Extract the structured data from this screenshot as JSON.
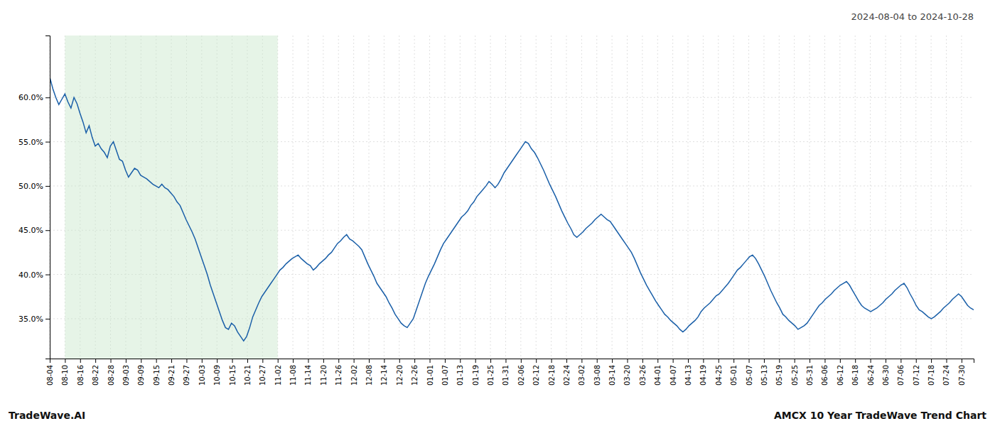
{
  "chart_data": {
    "type": "line",
    "title": "2024-08-04 to 2024-10-28",
    "annotations": [
      "TradeWave.AI",
      "AMCX 10 Year TradeWave Trend Chart"
    ],
    "color": "#1a5fa8",
    "grid": true,
    "shaded_span": {
      "x": [
        5.016393,
        75.245902
      ],
      "color": "#c8e6c9"
    },
    "xlim": [
      0,
      305
    ],
    "xticks": [
      {
        "value": 0,
        "label": "08-04"
      },
      {
        "value": 5.016393,
        "label": "08-10"
      },
      {
        "value": 10.032787,
        "label": "08-16"
      },
      {
        "value": 15.04918,
        "label": "08-22"
      },
      {
        "value": 20.065574,
        "label": "08-28"
      },
      {
        "value": 25.081967,
        "label": "09-03"
      },
      {
        "value": 30.098361,
        "label": "09-09"
      },
      {
        "value": 35.114754,
        "label": "09-15"
      },
      {
        "value": 40.131148,
        "label": "09-21"
      },
      {
        "value": 45.147541,
        "label": "09-27"
      },
      {
        "value": 50.163934,
        "label": "10-03"
      },
      {
        "value": 55.180328,
        "label": "10-09"
      },
      {
        "value": 60.196721,
        "label": "10-15"
      },
      {
        "value": 65.213115,
        "label": "10-21"
      },
      {
        "value": 70.229508,
        "label": "10-27"
      },
      {
        "value": 75.245902,
        "label": "11-02"
      },
      {
        "value": 80.262295,
        "label": "11-08"
      },
      {
        "value": 85.278689,
        "label": "11-14"
      },
      {
        "value": 90.295082,
        "label": "11-20"
      },
      {
        "value": 95.311475,
        "label": "11-26"
      },
      {
        "value": 100.327869,
        "label": "12-02"
      },
      {
        "value": 105.344262,
        "label": "12-08"
      },
      {
        "value": 110.360656,
        "label": "12-14"
      },
      {
        "value": 115.377049,
        "label": "12-20"
      },
      {
        "value": 120.393443,
        "label": "12-26"
      },
      {
        "value": 125.409836,
        "label": "01-01"
      },
      {
        "value": 130.42623,
        "label": "01-07"
      },
      {
        "value": 135.442623,
        "label": "01-13"
      },
      {
        "value": 140.459016,
        "label": "01-19"
      },
      {
        "value": 145.47541,
        "label": "01-25"
      },
      {
        "value": 150.491803,
        "label": "01-31"
      },
      {
        "value": 155.508197,
        "label": "02-06"
      },
      {
        "value": 160.52459,
        "label": "02-12"
      },
      {
        "value": 165.540984,
        "label": "02-18"
      },
      {
        "value": 170.557377,
        "label": "02-24"
      },
      {
        "value": 175.57377,
        "label": "03-02"
      },
      {
        "value": 180.590164,
        "label": "03-08"
      },
      {
        "value": 185.606557,
        "label": "03-14"
      },
      {
        "value": 190.622951,
        "label": "03-20"
      },
      {
        "value": 195.639344,
        "label": "03-26"
      },
      {
        "value": 200.655738,
        "label": "04-01"
      },
      {
        "value": 205.672131,
        "label": "04-07"
      },
      {
        "value": 210.688525,
        "label": "04-13"
      },
      {
        "value": 215.704918,
        "label": "04-19"
      },
      {
        "value": 220.721311,
        "label": "04-25"
      },
      {
        "value": 225.737705,
        "label": "05-01"
      },
      {
        "value": 230.754098,
        "label": "05-07"
      },
      {
        "value": 235.770492,
        "label": "05-13"
      },
      {
        "value": 240.786885,
        "label": "05-19"
      },
      {
        "value": 245.803279,
        "label": "05-25"
      },
      {
        "value": 250.819672,
        "label": "05-31"
      },
      {
        "value": 255.836066,
        "label": "06-06"
      },
      {
        "value": 260.852459,
        "label": "06-12"
      },
      {
        "value": 265.868852,
        "label": "06-18"
      },
      {
        "value": 270.885246,
        "label": "06-24"
      },
      {
        "value": 275.901639,
        "label": "06-30"
      },
      {
        "value": 280.918033,
        "label": "07-06"
      },
      {
        "value": 285.934426,
        "label": "07-12"
      },
      {
        "value": 290.95082,
        "label": "07-18"
      },
      {
        "value": 295.967213,
        "label": "07-24"
      },
      {
        "value": 300.983607,
        "label": "07-30"
      }
    ],
    "ylim": [
      0.305,
      0.67
    ],
    "yticks": [
      {
        "value": 0.35,
        "label": "35.0%"
      },
      {
        "value": 0.4,
        "label": "40.0%"
      },
      {
        "value": 0.45,
        "label": "45.0%"
      },
      {
        "value": 0.5,
        "label": "50.0%"
      },
      {
        "value": 0.55,
        "label": "55.0%"
      },
      {
        "value": 0.6,
        "label": "60.0%"
      }
    ],
    "values": [
      0.623,
      0.61,
      0.6,
      0.592,
      0.598,
      0.604,
      0.595,
      0.588,
      0.6,
      0.593,
      0.582,
      0.572,
      0.56,
      0.568,
      0.555,
      0.545,
      0.548,
      0.542,
      0.538,
      0.532,
      0.545,
      0.55,
      0.54,
      0.53,
      0.528,
      0.518,
      0.51,
      0.515,
      0.52,
      0.518,
      0.512,
      0.51,
      0.508,
      0.505,
      0.502,
      0.5,
      0.498,
      0.502,
      0.498,
      0.496,
      0.492,
      0.488,
      0.482,
      0.478,
      0.47,
      0.462,
      0.455,
      0.448,
      0.44,
      0.43,
      0.42,
      0.41,
      0.4,
      0.388,
      0.378,
      0.368,
      0.358,
      0.348,
      0.34,
      0.338,
      0.345,
      0.342,
      0.335,
      0.33,
      0.325,
      0.33,
      0.34,
      0.352,
      0.36,
      0.368,
      0.375,
      0.38,
      0.385,
      0.39,
      0.395,
      0.4,
      0.405,
      0.408,
      0.412,
      0.415,
      0.418,
      0.42,
      0.422,
      0.418,
      0.415,
      0.412,
      0.41,
      0.405,
      0.408,
      0.412,
      0.415,
      0.418,
      0.422,
      0.425,
      0.43,
      0.435,
      0.438,
      0.442,
      0.445,
      0.44,
      0.438,
      0.435,
      0.432,
      0.428,
      0.42,
      0.412,
      0.405,
      0.398,
      0.39,
      0.385,
      0.38,
      0.375,
      0.368,
      0.362,
      0.355,
      0.35,
      0.345,
      0.342,
      0.34,
      0.345,
      0.35,
      0.36,
      0.37,
      0.38,
      0.39,
      0.398,
      0.405,
      0.412,
      0.42,
      0.428,
      0.435,
      0.44,
      0.445,
      0.45,
      0.455,
      0.46,
      0.465,
      0.468,
      0.472,
      0.478,
      0.482,
      0.488,
      0.492,
      0.496,
      0.5,
      0.505,
      0.502,
      0.498,
      0.502,
      0.508,
      0.515,
      0.52,
      0.525,
      0.53,
      0.535,
      0.54,
      0.545,
      0.55,
      0.548,
      0.542,
      0.538,
      0.532,
      0.525,
      0.518,
      0.51,
      0.502,
      0.495,
      0.488,
      0.48,
      0.472,
      0.465,
      0.458,
      0.452,
      0.445,
      0.442,
      0.445,
      0.448,
      0.452,
      0.455,
      0.458,
      0.462,
      0.465,
      0.468,
      0.465,
      0.462,
      0.46,
      0.455,
      0.45,
      0.445,
      0.44,
      0.435,
      0.43,
      0.425,
      0.418,
      0.41,
      0.402,
      0.395,
      0.388,
      0.382,
      0.376,
      0.37,
      0.365,
      0.36,
      0.355,
      0.352,
      0.348,
      0.345,
      0.342,
      0.338,
      0.335,
      0.338,
      0.342,
      0.345,
      0.348,
      0.352,
      0.358,
      0.362,
      0.365,
      0.368,
      0.372,
      0.376,
      0.378,
      0.382,
      0.386,
      0.39,
      0.395,
      0.4,
      0.405,
      0.408,
      0.412,
      0.416,
      0.42,
      0.422,
      0.418,
      0.412,
      0.405,
      0.398,
      0.39,
      0.382,
      0.375,
      0.368,
      0.362,
      0.355,
      0.352,
      0.348,
      0.345,
      0.342,
      0.338,
      0.34,
      0.342,
      0.345,
      0.35,
      0.355,
      0.36,
      0.365,
      0.368,
      0.372,
      0.375,
      0.378,
      0.382,
      0.385,
      0.388,
      0.39,
      0.392,
      0.388,
      0.382,
      0.376,
      0.37,
      0.365,
      0.362,
      0.36,
      0.358,
      0.36,
      0.362,
      0.365,
      0.368,
      0.372,
      0.375,
      0.378,
      0.382,
      0.385,
      0.388,
      0.39,
      0.385,
      0.378,
      0.372,
      0.365,
      0.36,
      0.358,
      0.355,
      0.352,
      0.35,
      0.352,
      0.355,
      0.358,
      0.362,
      0.365,
      0.368,
      0.372,
      0.375,
      0.378,
      0.375,
      0.37,
      0.365,
      0.362,
      0.36
    ]
  }
}
